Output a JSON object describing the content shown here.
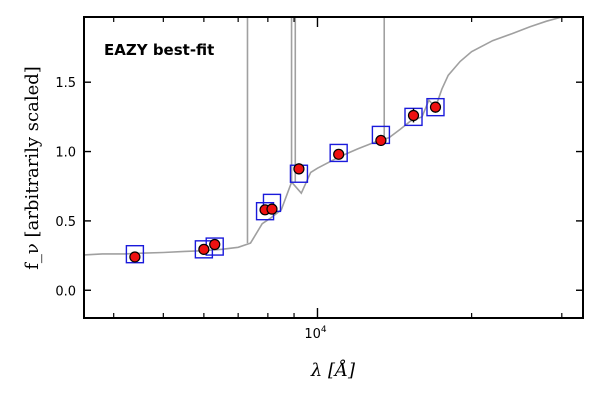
{
  "chart_data": {
    "type": "scatter",
    "title": "",
    "annotation": "EAZY best-fit",
    "annotation_color": "#ff0000",
    "xlabel": "λ [Å]",
    "ylabel": "f_ν [arbitrarily scaled]",
    "xscale": "log",
    "xlim": [
      3500,
      33000
    ],
    "ylim": [
      -0.2,
      1.97
    ],
    "x_tick_labels": [
      {
        "value": 10000,
        "base": "10",
        "exp": "4"
      }
    ],
    "y_ticks": [
      {
        "value": 0.0,
        "label": "0.0"
      },
      {
        "value": 0.5,
        "label": "0.5"
      },
      {
        "value": 1.0,
        "label": "1.0"
      },
      {
        "value": 1.5,
        "label": "1.5"
      }
    ],
    "grid": false,
    "colors": {
      "observed_fill": "#ee1111",
      "observed_edge": "#000000",
      "model_box": "#1a1adb",
      "template_line": "#a0a0a0"
    },
    "series": [
      {
        "kind": "observed",
        "points": [
          {
            "x": 4400,
            "y": 0.24,
            "err": 0.01
          },
          {
            "x": 6000,
            "y": 0.295,
            "err": 0.01
          },
          {
            "x": 6300,
            "y": 0.33,
            "err": 0.01
          },
          {
            "x": 7900,
            "y": 0.58,
            "err": 0.015
          },
          {
            "x": 8150,
            "y": 0.585,
            "err": 0.015
          },
          {
            "x": 9200,
            "y": 0.875,
            "err": 0.04
          },
          {
            "x": 11000,
            "y": 0.98,
            "err": 0.03
          },
          {
            "x": 13300,
            "y": 1.08,
            "err": 0.04
          },
          {
            "x": 15400,
            "y": 1.26,
            "err": 0.05
          },
          {
            "x": 17000,
            "y": 1.32,
            "err": 0.04
          }
        ]
      },
      {
        "kind": "model_photometry",
        "points": [
          {
            "x": 4400,
            "y": 0.26
          },
          {
            "x": 6000,
            "y": 0.295
          },
          {
            "x": 6300,
            "y": 0.315
          },
          {
            "x": 7900,
            "y": 0.57
          },
          {
            "x": 8150,
            "y": 0.63
          },
          {
            "x": 9200,
            "y": 0.84
          },
          {
            "x": 11000,
            "y": 0.99
          },
          {
            "x": 13300,
            "y": 1.12
          },
          {
            "x": 15400,
            "y": 1.25
          },
          {
            "x": 17000,
            "y": 1.32
          }
        ]
      },
      {
        "kind": "template_spectrum",
        "points": [
          [
            3500,
            0.255
          ],
          [
            3800,
            0.262
          ],
          [
            4200,
            0.262
          ],
          [
            4600,
            0.268
          ],
          [
            5000,
            0.272
          ],
          [
            5500,
            0.28
          ],
          [
            6000,
            0.285
          ],
          [
            6500,
            0.295
          ],
          [
            7000,
            0.31
          ],
          [
            7400,
            0.34
          ],
          [
            7800,
            0.48
          ],
          [
            8100,
            0.52
          ],
          [
            8500,
            0.58
          ],
          [
            8900,
            0.78
          ],
          [
            9300,
            0.7
          ],
          [
            9700,
            0.85
          ],
          [
            10000,
            0.88
          ],
          [
            10500,
            0.92
          ],
          [
            11000,
            0.96
          ],
          [
            12000,
            1.02
          ],
          [
            13000,
            1.07
          ],
          [
            13800,
            1.1
          ],
          [
            14500,
            1.16
          ],
          [
            15200,
            1.22
          ],
          [
            16000,
            1.25
          ],
          [
            16500,
            1.37
          ],
          [
            17000,
            1.32
          ],
          [
            17500,
            1.45
          ],
          [
            18000,
            1.55
          ],
          [
            19000,
            1.65
          ],
          [
            20000,
            1.72
          ],
          [
            22000,
            1.8
          ],
          [
            24000,
            1.85
          ],
          [
            26000,
            1.9
          ],
          [
            28000,
            1.94
          ],
          [
            30000,
            1.97
          ],
          [
            33000,
            2.0
          ]
        ],
        "emission_lines": [
          {
            "x": 7300,
            "peak": 2.05
          },
          {
            "x": 8900,
            "peak": 2.05
          },
          {
            "x": 9050,
            "peak": 2.05
          },
          {
            "x": 13500,
            "peak": 2.05
          }
        ]
      }
    ]
  }
}
